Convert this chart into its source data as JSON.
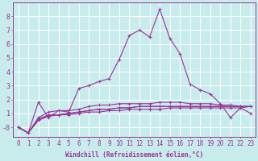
{
  "xlabel": "Windchill (Refroidissement éolien,°C)",
  "ylabel": "",
  "background_color": "#c8ecec",
  "grid_color": "#aadddd",
  "line_color": "#993399",
  "xlim": [
    -0.5,
    23.5
  ],
  "ylim": [
    -0.7,
    9.0
  ],
  "xticks": [
    0,
    1,
    2,
    3,
    4,
    5,
    6,
    7,
    8,
    9,
    10,
    11,
    12,
    13,
    14,
    15,
    16,
    17,
    18,
    19,
    20,
    21,
    22,
    23
  ],
  "yticks": [
    0,
    1,
    2,
    3,
    4,
    5,
    6,
    7,
    8
  ],
  "ytick_labels": [
    "-0",
    "1",
    "2",
    "3",
    "4",
    "5",
    "6",
    "7",
    "8"
  ],
  "series": [
    [
      0.0,
      -0.4,
      1.8,
      0.7,
      1.2,
      1.1,
      2.8,
      3.0,
      3.3,
      3.5,
      4.9,
      6.6,
      7.0,
      6.5,
      8.5,
      6.4,
      5.3,
      3.1,
      2.7,
      2.4,
      1.7,
      0.7,
      1.4,
      1.0
    ],
    [
      0.0,
      -0.4,
      0.7,
      1.1,
      1.2,
      1.2,
      1.3,
      1.5,
      1.6,
      1.6,
      1.7,
      1.7,
      1.7,
      1.7,
      1.8,
      1.8,
      1.8,
      1.7,
      1.7,
      1.7,
      1.6,
      1.6,
      1.5,
      1.5
    ],
    [
      0.0,
      -0.4,
      0.5,
      0.8,
      0.9,
      0.9,
      1.0,
      1.1,
      1.1,
      1.2,
      1.2,
      1.3,
      1.3,
      1.3,
      1.3,
      1.4,
      1.4,
      1.4,
      1.4,
      1.4,
      1.4,
      1.4,
      1.4,
      1.5
    ],
    [
      0.0,
      -0.4,
      0.6,
      0.8,
      0.9,
      1.0,
      1.1,
      1.2,
      1.3,
      1.3,
      1.4,
      1.4,
      1.5,
      1.5,
      1.5,
      1.5,
      1.5,
      1.5,
      1.5,
      1.5,
      1.5,
      1.5,
      1.5,
      1.5
    ],
    [
      0.0,
      -0.4,
      0.6,
      0.9,
      0.9,
      1.0,
      1.1,
      1.2,
      1.3,
      1.3,
      1.4,
      1.4,
      1.5,
      1.5,
      1.5,
      1.5,
      1.5,
      1.5,
      1.5,
      1.5,
      1.5,
      1.5,
      1.5,
      1.5
    ]
  ],
  "marker_size": 2.0,
  "line_width": 0.8,
  "xlabel_fontsize": 5.5,
  "tick_fontsize": 5.5
}
